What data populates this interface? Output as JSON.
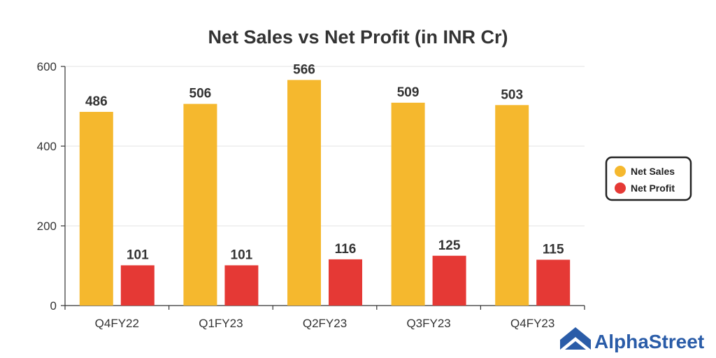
{
  "chart_data": {
    "type": "bar",
    "title": "Net Sales vs Net Profit (in INR Cr)",
    "categories": [
      "Q4FY22",
      "Q1FY23",
      "Q2FY23",
      "Q3FY23",
      "Q4FY23"
    ],
    "series": [
      {
        "name": "Net Sales",
        "values": [
          486,
          506,
          566,
          509,
          503
        ],
        "color": "#f5b82e"
      },
      {
        "name": "Net Profit",
        "values": [
          101,
          101,
          116,
          125,
          115
        ],
        "color": "#e53935"
      }
    ],
    "ylim": [
      0,
      600
    ],
    "yticks": [
      0,
      200,
      400,
      600
    ],
    "grid": true,
    "legend_position": "right",
    "xlabel": "",
    "ylabel": ""
  },
  "brand": {
    "name": "AlphaStreet",
    "icon": "alphastreet-logo-icon",
    "color": "#2a5ca8"
  }
}
